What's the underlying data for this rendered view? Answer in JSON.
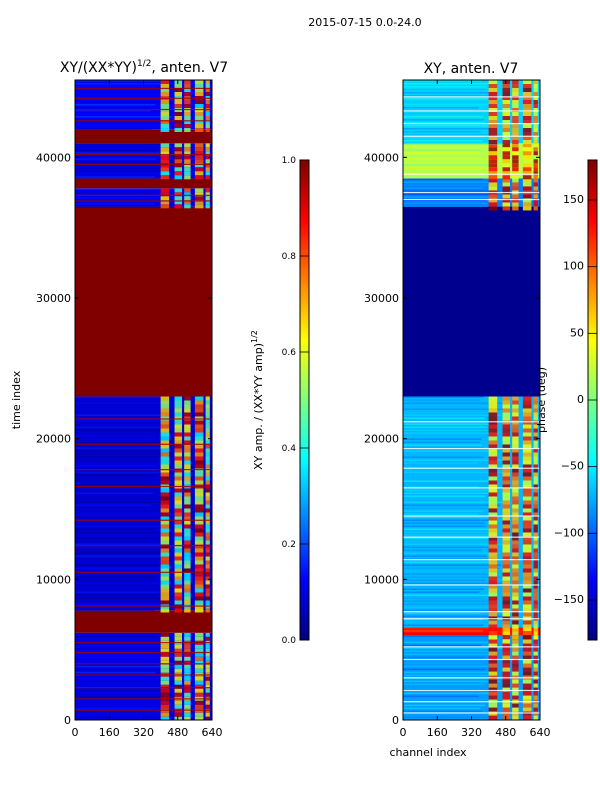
{
  "suptitle": "2015-07-15 0.0-24.0",
  "chart_data": [
    {
      "type": "heatmap",
      "title": "XY/(XX*YY)^1/2, anten. V7",
      "title_main": "XY/(XX*YY)",
      "title_exp": "1/2",
      "title_tail": ", anten. V7",
      "xlabel": "",
      "ylabel": "time index",
      "xlim": [
        0,
        640
      ],
      "ylim": [
        0,
        45500
      ],
      "xticks": [
        0,
        160,
        320,
        480,
        640
      ],
      "yticks": [
        0,
        10000,
        20000,
        30000,
        40000
      ],
      "colorbar": {
        "label": "XY amp. / (XX*YY amp)^1/2",
        "label_main": "XY amp. / (XX*YY amp)",
        "label_exp": "1/2",
        "range": [
          0.0,
          1.0
        ],
        "ticks": [
          "0.0",
          "0.2",
          "0.4",
          "0.6",
          "0.8",
          "1.0"
        ],
        "tick_values": [
          0.0,
          0.2,
          0.4,
          0.6,
          0.8,
          1.0
        ]
      },
      "bands": [
        {
          "y0": 0,
          "y1": 6200,
          "value": 0.1
        },
        {
          "y0": 6200,
          "y1": 7800,
          "value": 1.0
        },
        {
          "y0": 7800,
          "y1": 23000,
          "value": 0.08
        },
        {
          "y0": 23000,
          "y1": 36500,
          "value": 1.0
        },
        {
          "y0": 36500,
          "y1": 37800,
          "value": 0.1
        },
        {
          "y0": 37800,
          "y1": 38500,
          "value": 1.0
        },
        {
          "y0": 38500,
          "y1": 41000,
          "value": 0.1
        },
        {
          "y0": 41000,
          "y1": 42000,
          "value": 1.0
        },
        {
          "y0": 42000,
          "y1": 45500,
          "value": 0.12
        }
      ],
      "active_channels": [
        [
          400,
          440
        ],
        [
          465,
          500
        ],
        [
          510,
          540
        ],
        [
          560,
          600
        ],
        [
          610,
          630
        ]
      ]
    },
    {
      "type": "heatmap",
      "title": "XY, anten. V7",
      "xlabel": "channel index",
      "ylabel": "",
      "xlim": [
        0,
        640
      ],
      "ylim": [
        0,
        45500
      ],
      "xticks": [
        0,
        160,
        320,
        480,
        640
      ],
      "yticks": [
        0,
        10000,
        20000,
        30000,
        40000
      ],
      "colorbar": {
        "label": "phase (deg)",
        "range": [
          -180,
          180
        ],
        "ticks": [
          "−150",
          "−100",
          "−50",
          "0",
          "50",
          "100",
          "150"
        ],
        "tick_values": [
          -150,
          -100,
          -50,
          0,
          50,
          100,
          150
        ]
      },
      "bands": [
        {
          "y0": 0,
          "y1": 6000,
          "value": -80
        },
        {
          "y0": 6000,
          "y1": 6600,
          "value": 130
        },
        {
          "y0": 6600,
          "y1": 23000,
          "value": -70
        },
        {
          "y0": 23000,
          "y1": 36500,
          "value": -175
        },
        {
          "y0": 36500,
          "y1": 38500,
          "value": -90
        },
        {
          "y0": 38500,
          "y1": 41000,
          "value": 20
        },
        {
          "y0": 41000,
          "y1": 45500,
          "value": -60
        }
      ],
      "active_channels": [
        [
          400,
          440
        ],
        [
          465,
          500
        ],
        [
          510,
          540
        ],
        [
          560,
          600
        ],
        [
          610,
          630
        ]
      ]
    }
  ]
}
